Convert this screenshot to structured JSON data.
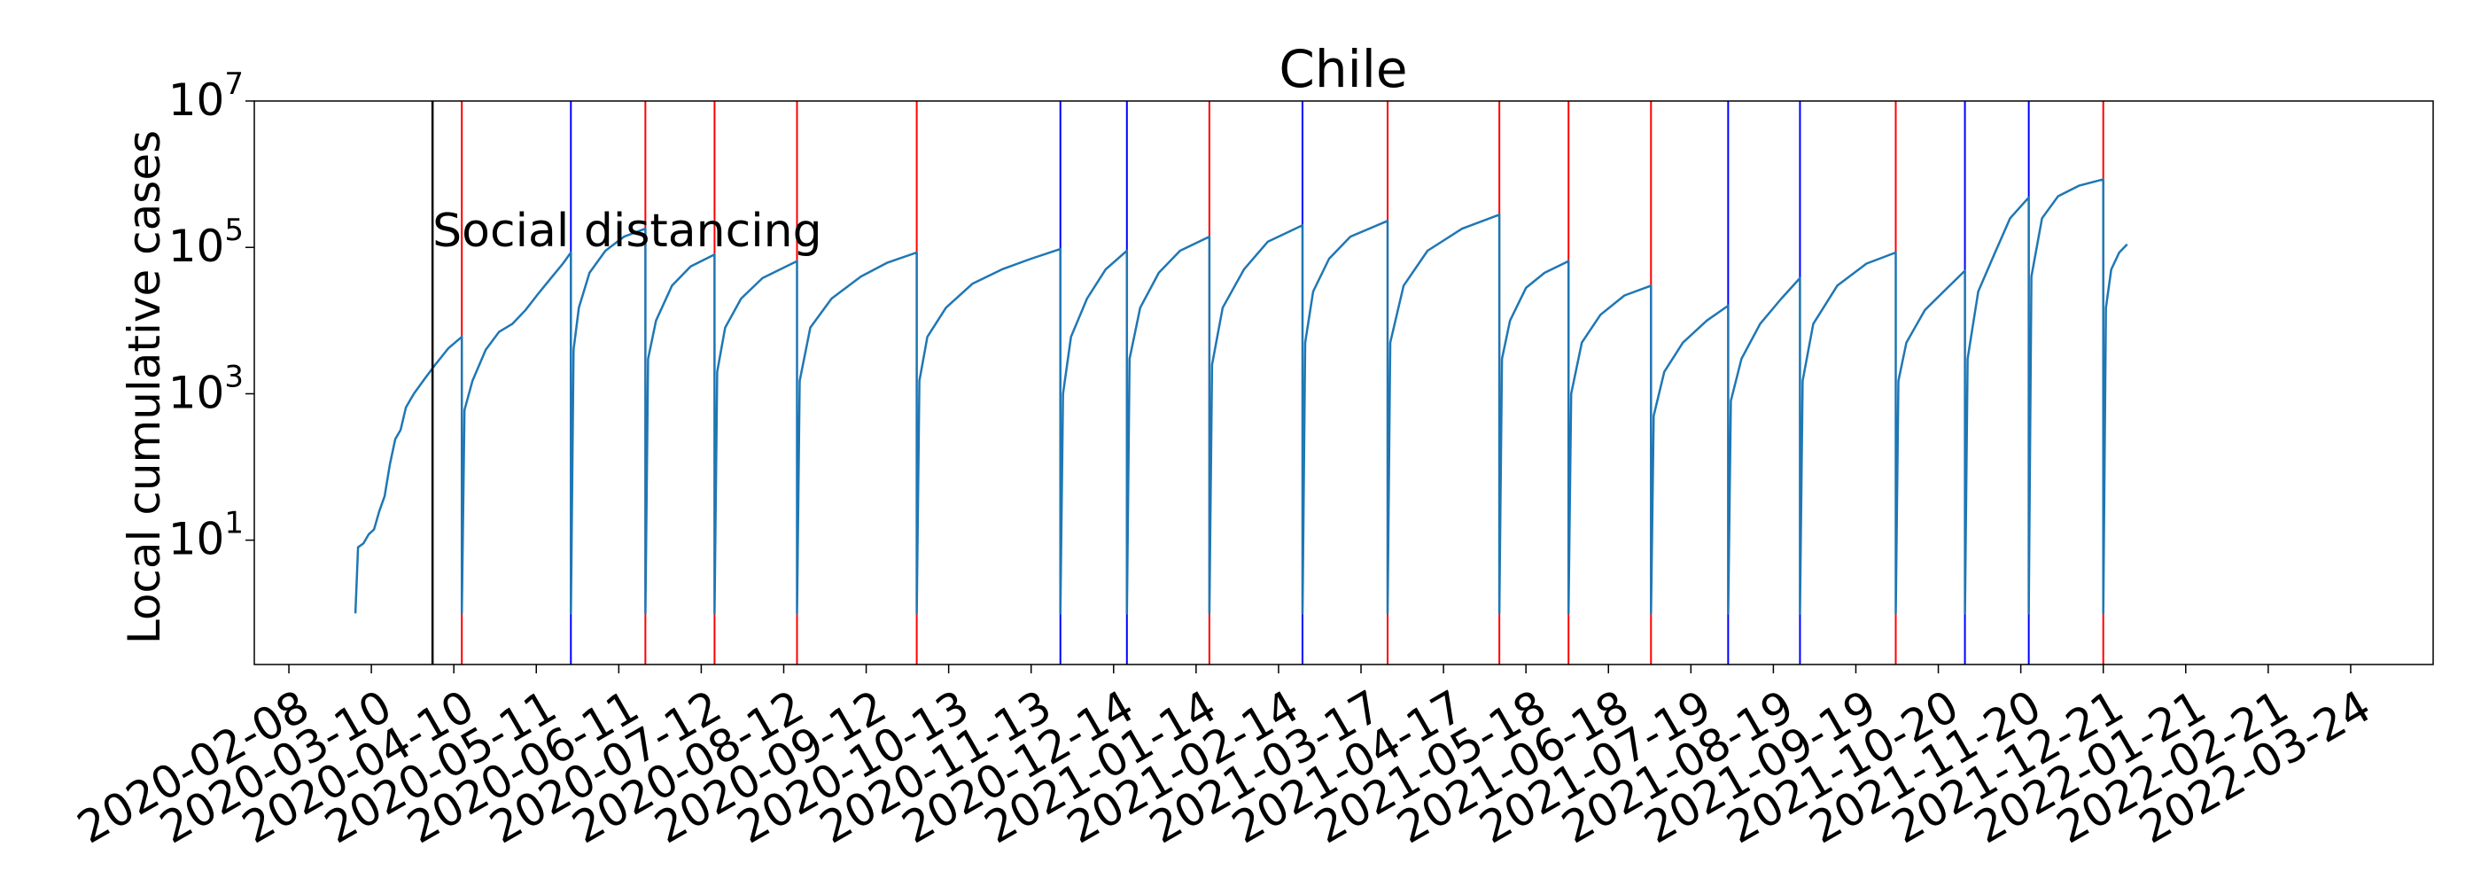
{
  "chart_data": {
    "type": "line",
    "title": "Chile",
    "xlabel": "",
    "ylabel": "Local cumulative cases",
    "yscale": "log",
    "ylim": [
      0.2,
      10000000
    ],
    "xlim": [
      "2020-01-26",
      "2022-04-24"
    ],
    "grid": false,
    "line_color": "#1f77b4",
    "x_ticks": [
      "2020-02-08",
      "2020-03-10",
      "2020-04-10",
      "2020-05-11",
      "2020-06-11",
      "2020-07-12",
      "2020-08-12",
      "2020-09-12",
      "2020-10-13",
      "2020-11-13",
      "2020-12-14",
      "2021-01-14",
      "2021-02-14",
      "2021-03-17",
      "2021-04-17",
      "2021-05-18",
      "2021-06-18",
      "2021-07-19",
      "2021-08-19",
      "2021-09-19",
      "2021-10-20",
      "2021-11-20",
      "2021-12-21",
      "2022-01-21",
      "2022-02-21",
      "2022-03-24"
    ],
    "y_ticks": [
      {
        "value": 10,
        "base": "10",
        "exp": "1"
      },
      {
        "value": 1000,
        "base": "10",
        "exp": "3"
      },
      {
        "value": 100000,
        "base": "10",
        "exp": "5"
      },
      {
        "value": 10000000,
        "base": "10",
        "exp": "7"
      }
    ],
    "annotation": {
      "text": "Social distancing",
      "date": "2020-04-02",
      "color": "#000000"
    },
    "vertical_lines": [
      {
        "date": "2020-04-13",
        "color": "#ff0000"
      },
      {
        "date": "2020-05-24",
        "color": "#0000ff"
      },
      {
        "date": "2020-06-21",
        "color": "#ff0000"
      },
      {
        "date": "2020-07-17",
        "color": "#ff0000"
      },
      {
        "date": "2020-08-17",
        "color": "#ff0000"
      },
      {
        "date": "2020-10-01",
        "color": "#ff0000"
      },
      {
        "date": "2020-11-24",
        "color": "#0000ff"
      },
      {
        "date": "2020-12-19",
        "color": "#0000ff"
      },
      {
        "date": "2021-01-19",
        "color": "#ff0000"
      },
      {
        "date": "2021-02-23",
        "color": "#0000ff"
      },
      {
        "date": "2021-03-27",
        "color": "#ff0000"
      },
      {
        "date": "2021-05-08",
        "color": "#ff0000"
      },
      {
        "date": "2021-06-03",
        "color": "#ff0000"
      },
      {
        "date": "2021-07-04",
        "color": "#ff0000"
      },
      {
        "date": "2021-08-02",
        "color": "#0000ff"
      },
      {
        "date": "2021-08-29",
        "color": "#0000ff"
      },
      {
        "date": "2021-10-04",
        "color": "#ff0000"
      },
      {
        "date": "2021-10-30",
        "color": "#0000ff"
      },
      {
        "date": "2021-11-23",
        "color": "#0000ff"
      },
      {
        "date": "2021-12-21",
        "color": "#ff0000"
      }
    ],
    "series": [
      {
        "segments": [
          [
            [
              "2020-03-04",
              1
            ],
            [
              "2020-03-05",
              8
            ],
            [
              "2020-03-07",
              9
            ],
            [
              "2020-03-09",
              12
            ],
            [
              "2020-03-11",
              14
            ],
            [
              "2020-03-13",
              25
            ],
            [
              "2020-03-15",
              40
            ],
            [
              "2020-03-17",
              110
            ],
            [
              "2020-03-19",
              240
            ],
            [
              "2020-03-21",
              320
            ],
            [
              "2020-03-23",
              650
            ],
            [
              "2020-03-26",
              1000
            ],
            [
              "2020-03-30",
              1600
            ],
            [
              "2020-04-03",
              2500
            ],
            [
              "2020-04-08",
              4200
            ],
            [
              "2020-04-13",
              6000
            ]
          ],
          [
            [
              "2020-04-13",
              1
            ],
            [
              "2020-04-14",
              600
            ],
            [
              "2020-04-17",
              1500
            ],
            [
              "2020-04-22",
              4000
            ],
            [
              "2020-04-27",
              7000
            ],
            [
              "2020-05-02",
              9000
            ],
            [
              "2020-05-07",
              14000
            ],
            [
              "2020-05-12",
              24000
            ],
            [
              "2020-05-17",
              40000
            ],
            [
              "2020-05-21",
              60000
            ],
            [
              "2020-05-24",
              85000
            ]
          ],
          [
            [
              "2020-05-24",
              1
            ],
            [
              "2020-05-25",
              4000
            ],
            [
              "2020-05-27",
              15000
            ],
            [
              "2020-05-31",
              45000
            ],
            [
              "2020-06-06",
              90000
            ],
            [
              "2020-06-13",
              140000
            ],
            [
              "2020-06-21",
              180000
            ]
          ],
          [
            [
              "2020-06-21",
              1
            ],
            [
              "2020-06-22",
              3000
            ],
            [
              "2020-06-25",
              10000
            ],
            [
              "2020-07-01",
              30000
            ],
            [
              "2020-07-08",
              55000
            ],
            [
              "2020-07-17",
              80000
            ]
          ],
          [
            [
              "2020-07-17",
              1
            ],
            [
              "2020-07-18",
              2000
            ],
            [
              "2020-07-21",
              8000
            ],
            [
              "2020-07-27",
              20000
            ],
            [
              "2020-08-04",
              38000
            ],
            [
              "2020-08-17",
              65000
            ]
          ],
          [
            [
              "2020-08-17",
              1
            ],
            [
              "2020-08-18",
              1500
            ],
            [
              "2020-08-22",
              8000
            ],
            [
              "2020-08-30",
              20000
            ],
            [
              "2020-09-10",
              40000
            ],
            [
              "2020-09-20",
              62000
            ],
            [
              "2020-10-01",
              85000
            ]
          ],
          [
            [
              "2020-10-01",
              1
            ],
            [
              "2020-10-02",
              1500
            ],
            [
              "2020-10-05",
              6000
            ],
            [
              "2020-10-12",
              15000
            ],
            [
              "2020-10-22",
              32000
            ],
            [
              "2020-11-02",
              50000
            ],
            [
              "2020-11-13",
              70000
            ],
            [
              "2020-11-24",
              95000
            ]
          ],
          [
            [
              "2020-11-24",
              1
            ],
            [
              "2020-11-25",
              1000
            ],
            [
              "2020-11-28",
              6000
            ],
            [
              "2020-12-04",
              20000
            ],
            [
              "2020-12-11",
              50000
            ],
            [
              "2020-12-19",
              90000
            ]
          ],
          [
            [
              "2020-12-19",
              1
            ],
            [
              "2020-12-20",
              3000
            ],
            [
              "2020-12-24",
              15000
            ],
            [
              "2020-12-31",
              45000
            ],
            [
              "2021-01-08",
              90000
            ],
            [
              "2021-01-19",
              140000
            ]
          ],
          [
            [
              "2021-01-19",
              1
            ],
            [
              "2021-01-20",
              2500
            ],
            [
              "2021-01-24",
              15000
            ],
            [
              "2021-02-01",
              50000
            ],
            [
              "2021-02-10",
              120000
            ],
            [
              "2021-02-23",
              200000
            ]
          ],
          [
            [
              "2021-02-23",
              1
            ],
            [
              "2021-02-24",
              5000
            ],
            [
              "2021-02-27",
              25000
            ],
            [
              "2021-03-05",
              70000
            ],
            [
              "2021-03-13",
              140000
            ],
            [
              "2021-03-27",
              230000
            ]
          ],
          [
            [
              "2021-03-27",
              1
            ],
            [
              "2021-03-28",
              5000
            ],
            [
              "2021-04-02",
              30000
            ],
            [
              "2021-04-11",
              90000
            ],
            [
              "2021-04-24",
              180000
            ],
            [
              "2021-05-08",
              280000
            ]
          ],
          [
            [
              "2021-05-08",
              1
            ],
            [
              "2021-05-09",
              3000
            ],
            [
              "2021-05-12",
              10000
            ],
            [
              "2021-05-18",
              28000
            ],
            [
              "2021-05-25",
              45000
            ],
            [
              "2021-06-03",
              65000
            ]
          ],
          [
            [
              "2021-06-03",
              1
            ],
            [
              "2021-06-04",
              1000
            ],
            [
              "2021-06-08",
              5000
            ],
            [
              "2021-06-15",
              12000
            ],
            [
              "2021-06-24",
              22000
            ],
            [
              "2021-07-04",
              30000
            ]
          ],
          [
            [
              "2021-07-04",
              1
            ],
            [
              "2021-07-05",
              500
            ],
            [
              "2021-07-09",
              2000
            ],
            [
              "2021-07-16",
              5000
            ],
            [
              "2021-07-25",
              10000
            ],
            [
              "2021-08-02",
              16000
            ]
          ],
          [
            [
              "2021-08-02",
              1
            ],
            [
              "2021-08-03",
              800
            ],
            [
              "2021-08-07",
              3000
            ],
            [
              "2021-08-14",
              9000
            ],
            [
              "2021-08-22",
              20000
            ],
            [
              "2021-08-29",
              38000
            ]
          ],
          [
            [
              "2021-08-29",
              1
            ],
            [
              "2021-08-30",
              1500
            ],
            [
              "2021-09-03",
              9000
            ],
            [
              "2021-09-12",
              30000
            ],
            [
              "2021-09-23",
              60000
            ],
            [
              "2021-10-04",
              85000
            ]
          ],
          [
            [
              "2021-10-04",
              1
            ],
            [
              "2021-10-05",
              1500
            ],
            [
              "2021-10-08",
              5000
            ],
            [
              "2021-10-15",
              14000
            ],
            [
              "2021-10-22",
              25000
            ],
            [
              "2021-10-30",
              48000
            ]
          ],
          [
            [
              "2021-10-30",
              1
            ],
            [
              "2021-10-31",
              3000
            ],
            [
              "2021-11-04",
              25000
            ],
            [
              "2021-11-10",
              80000
            ],
            [
              "2021-11-16",
              250000
            ],
            [
              "2021-11-23",
              480000
            ]
          ],
          [
            [
              "2021-11-23",
              1
            ],
            [
              "2021-11-24",
              40000
            ],
            [
              "2021-11-28",
              250000
            ],
            [
              "2021-12-04",
              500000
            ],
            [
              "2021-12-12",
              700000
            ],
            [
              "2021-12-21",
              850000
            ]
          ],
          [
            [
              "2021-12-21",
              1
            ],
            [
              "2021-12-22",
              15000
            ],
            [
              "2021-12-24",
              50000
            ],
            [
              "2021-12-27",
              85000
            ],
            [
              "2021-12-30",
              110000
            ]
          ]
        ]
      }
    ]
  }
}
